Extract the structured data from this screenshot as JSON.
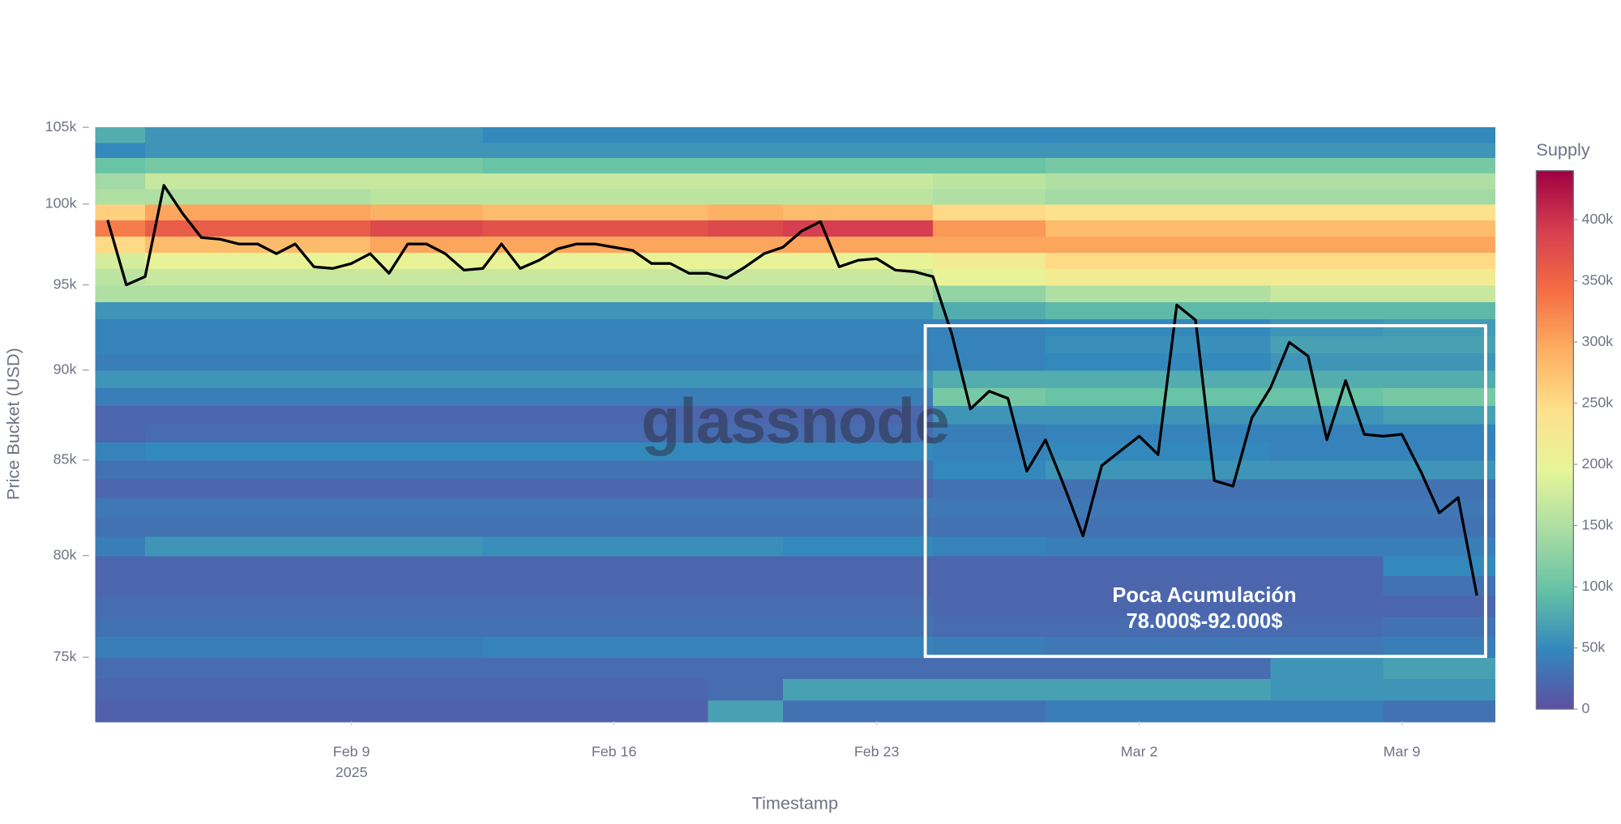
{
  "chart_data": {
    "type": "heatmap",
    "x_title": "Timestamp",
    "y_title": "Price Bucket (USD)",
    "x_year_label": "2025",
    "watermark": "glassnode",
    "annotation": [
      "Poca Acumulación",
      "78.000$-92.000$"
    ],
    "xlim": [
      "2025-02-02T04:00",
      "2025-03-11T11:30"
    ],
    "xticks": [
      {
        "value": "2025-02-09T00:00",
        "label": "Feb 9"
      },
      {
        "value": "2025-02-16T00:00",
        "label": "Feb 16"
      },
      {
        "value": "2025-02-23T00:00",
        "label": "Feb 23"
      },
      {
        "value": "2025-03-02T00:00",
        "label": "Mar 2"
      },
      {
        "value": "2025-03-09T00:00",
        "label": "Mar 9"
      }
    ],
    "ylim": [
      72000,
      105000
    ],
    "yscale": "log",
    "yticks": [
      {
        "value": 75000,
        "label": "75k"
      },
      {
        "value": 80000,
        "label": "80k"
      },
      {
        "value": 85000,
        "label": "85k"
      },
      {
        "value": 90000,
        "label": "90k"
      },
      {
        "value": 95000,
        "label": "95k"
      },
      {
        "value": 100000,
        "label": "100k"
      },
      {
        "value": 105000,
        "label": "105k"
      }
    ],
    "x_bins": [
      "2025-02-02T04:00",
      "2025-02-03T12:00",
      "2025-02-09T12:00",
      "2025-02-12T12:00",
      "2025-02-18T12:00",
      "2025-02-20T12:00",
      "2025-02-24T12:00",
      "2025-02-27T12:00",
      "2025-03-05T12:00",
      "2025-03-08T12:00",
      "2025-03-11T11:30"
    ],
    "y_bins": [
      72000,
      73000,
      74000,
      75000,
      76000,
      77000,
      78000,
      79000,
      80000,
      81000,
      82000,
      83000,
      84000,
      85000,
      86000,
      87000,
      88000,
      89000,
      90000,
      91000,
      92000,
      93000,
      94000,
      95000,
      96000,
      97000,
      98000,
      99000,
      100000,
      101000,
      102000,
      103000,
      104000,
      105000
    ],
    "z": [
      [
        15000,
        15000,
        15000,
        15000,
        70000,
        30000,
        30000,
        40000,
        40000,
        30000
      ],
      [
        20000,
        20000,
        20000,
        20000,
        25000,
        70000,
        70000,
        70000,
        60000,
        60000
      ],
      [
        25000,
        25000,
        25000,
        25000,
        25000,
        25000,
        25000,
        25000,
        60000,
        70000
      ],
      [
        40000,
        40000,
        40000,
        45000,
        45000,
        45000,
        40000,
        35000,
        35000,
        40000
      ],
      [
        30000,
        30000,
        30000,
        30000,
        30000,
        30000,
        25000,
        25000,
        25000,
        30000
      ],
      [
        25000,
        25000,
        25000,
        25000,
        25000,
        25000,
        20000,
        20000,
        20000,
        20000
      ],
      [
        20000,
        20000,
        20000,
        20000,
        20000,
        20000,
        20000,
        20000,
        20000,
        30000
      ],
      [
        20000,
        20000,
        20000,
        20000,
        20000,
        20000,
        20000,
        20000,
        20000,
        50000
      ],
      [
        40000,
        60000,
        60000,
        55000,
        55000,
        50000,
        45000,
        40000,
        40000,
        40000
      ],
      [
        30000,
        30000,
        30000,
        30000,
        30000,
        30000,
        30000,
        30000,
        30000,
        30000
      ],
      [
        35000,
        35000,
        35000,
        35000,
        35000,
        35000,
        35000,
        35000,
        35000,
        35000
      ],
      [
        20000,
        20000,
        20000,
        20000,
        20000,
        20000,
        30000,
        30000,
        30000,
        30000
      ],
      [
        30000,
        30000,
        30000,
        30000,
        30000,
        30000,
        50000,
        60000,
        60000,
        60000
      ],
      [
        45000,
        50000,
        50000,
        50000,
        50000,
        50000,
        45000,
        50000,
        45000,
        45000
      ],
      [
        20000,
        25000,
        25000,
        25000,
        25000,
        25000,
        40000,
        45000,
        45000,
        45000
      ],
      [
        20000,
        20000,
        20000,
        20000,
        20000,
        20000,
        60000,
        60000,
        60000,
        70000
      ],
      [
        40000,
        40000,
        40000,
        40000,
        40000,
        40000,
        110000,
        100000,
        100000,
        110000
      ],
      [
        60000,
        60000,
        60000,
        60000,
        60000,
        60000,
        80000,
        80000,
        80000,
        80000
      ],
      [
        40000,
        40000,
        40000,
        40000,
        40000,
        40000,
        45000,
        50000,
        60000,
        60000
      ],
      [
        45000,
        45000,
        45000,
        45000,
        45000,
        45000,
        45000,
        55000,
        70000,
        70000
      ],
      [
        45000,
        45000,
        45000,
        45000,
        45000,
        45000,
        45000,
        50000,
        60000,
        65000
      ],
      [
        60000,
        60000,
        60000,
        60000,
        60000,
        60000,
        80000,
        90000,
        90000,
        90000
      ],
      [
        150000,
        150000,
        150000,
        150000,
        150000,
        150000,
        130000,
        150000,
        170000,
        170000
      ],
      [
        160000,
        170000,
        170000,
        170000,
        170000,
        170000,
        200000,
        220000,
        220000,
        220000
      ],
      [
        180000,
        200000,
        200000,
        200000,
        200000,
        200000,
        220000,
        250000,
        250000,
        250000
      ],
      [
        250000,
        280000,
        300000,
        300000,
        300000,
        300000,
        300000,
        300000,
        300000,
        300000
      ],
      [
        330000,
        360000,
        380000,
        370000,
        380000,
        390000,
        310000,
        280000,
        280000,
        280000
      ],
      [
        260000,
        300000,
        290000,
        280000,
        290000,
        280000,
        250000,
        240000,
        240000,
        240000
      ],
      [
        150000,
        150000,
        160000,
        160000,
        160000,
        160000,
        150000,
        140000,
        140000,
        140000
      ],
      [
        140000,
        170000,
        170000,
        170000,
        170000,
        170000,
        160000,
        150000,
        150000,
        150000
      ],
      [
        100000,
        110000,
        110000,
        100000,
        100000,
        100000,
        100000,
        110000,
        110000,
        110000
      ],
      [
        50000,
        60000,
        60000,
        60000,
        60000,
        60000,
        60000,
        60000,
        60000,
        60000
      ],
      [
        80000,
        60000,
        60000,
        50000,
        50000,
        50000,
        50000,
        50000,
        50000,
        50000
      ]
    ],
    "colorbar": {
      "title": "Supply",
      "zlim": [
        0,
        440000
      ],
      "colorscale": [
        "#5e4fa2",
        "#3288bd",
        "#66c2a5",
        "#abdda4",
        "#e6f598",
        "#fee08b",
        "#fdae61",
        "#f46d43",
        "#d53e4f",
        "#9e0142"
      ],
      "ticks": [
        0,
        {
          "value": 50000,
          "label": "50k"
        },
        {
          "value": 100000,
          "label": "100k"
        },
        {
          "value": 150000,
          "label": "150k"
        },
        {
          "value": 200000,
          "label": "200k"
        },
        {
          "value": 250000,
          "label": "250k"
        },
        {
          "value": 300000,
          "label": "300k"
        },
        {
          "value": 350000,
          "label": "350k"
        },
        {
          "value": 400000,
          "label": "400k"
        }
      ]
    },
    "line": {
      "color": "#000000",
      "x": [
        "2025-02-02T12:00",
        "2025-02-03T00:00",
        "2025-02-03T12:00",
        "2025-02-04T00:00",
        "2025-02-04T12:00",
        "2025-02-05T00:00",
        "2025-02-05T12:00",
        "2025-02-06T00:00",
        "2025-02-06T12:00",
        "2025-02-07T00:00",
        "2025-02-07T12:00",
        "2025-02-08T00:00",
        "2025-02-08T12:00",
        "2025-02-09T00:00",
        "2025-02-09T12:00",
        "2025-02-10T00:00",
        "2025-02-10T12:00",
        "2025-02-11T00:00",
        "2025-02-11T12:00",
        "2025-02-12T00:00",
        "2025-02-12T12:00",
        "2025-02-13T00:00",
        "2025-02-13T12:00",
        "2025-02-14T00:00",
        "2025-02-14T12:00",
        "2025-02-15T00:00",
        "2025-02-15T12:00",
        "2025-02-16T00:00",
        "2025-02-16T12:00",
        "2025-02-17T00:00",
        "2025-02-17T12:00",
        "2025-02-18T00:00",
        "2025-02-18T12:00",
        "2025-02-19T00:00",
        "2025-02-19T12:00",
        "2025-02-20T00:00",
        "2025-02-20T12:00",
        "2025-02-21T00:00",
        "2025-02-21T12:00",
        "2025-02-22T00:00",
        "2025-02-22T12:00",
        "2025-02-23T00:00",
        "2025-02-23T12:00",
        "2025-02-24T00:00",
        "2025-02-24T12:00",
        "2025-02-25T00:00",
        "2025-02-25T12:00",
        "2025-02-26T00:00",
        "2025-02-26T12:00",
        "2025-02-27T00:00",
        "2025-02-27T12:00",
        "2025-02-28T00:00",
        "2025-02-28T12:00",
        "2025-03-01T00:00",
        "2025-03-01T12:00",
        "2025-03-02T00:00",
        "2025-03-02T12:00",
        "2025-03-03T00:00",
        "2025-03-03T12:00",
        "2025-03-04T00:00",
        "2025-03-04T12:00",
        "2025-03-05T00:00",
        "2025-03-05T12:00",
        "2025-03-06T00:00",
        "2025-03-06T12:00",
        "2025-03-07T00:00",
        "2025-03-07T12:00",
        "2025-03-08T00:00",
        "2025-03-08T12:00",
        "2025-03-09T00:00",
        "2025-03-09T12:00",
        "2025-03-10T00:00",
        "2025-03-10T12:00",
        "2025-03-11T00:00"
      ],
      "values": [
        99000,
        95000,
        95500,
        101200,
        99400,
        97900,
        97800,
        97500,
        97500,
        96900,
        97500,
        96100,
        96000,
        96300,
        96900,
        95700,
        97500,
        97500,
        96900,
        95900,
        96000,
        97500,
        96000,
        96500,
        97200,
        97500,
        97500,
        97300,
        97100,
        96300,
        96300,
        95700,
        95700,
        95400,
        96100,
        96900,
        97300,
        98300,
        98900,
        96100,
        96500,
        96600,
        95900,
        95800,
        95500,
        92100,
        87800,
        88800,
        88400,
        84400,
        86100,
        83600,
        81000,
        84700,
        85500,
        86300,
        85300,
        93800,
        92900,
        83900,
        83600,
        87300,
        89000,
        91600,
        90800,
        86100,
        89400,
        86400,
        86300,
        86400,
        84400,
        82200,
        83000,
        78000
      ]
    }
  }
}
